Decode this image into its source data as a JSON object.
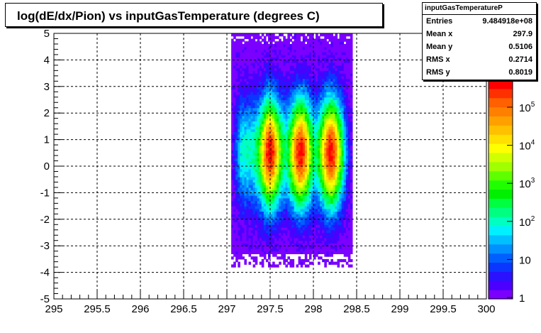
{
  "title": "log(dE/dx/Pion) vs inputGasTemperature (degrees C)",
  "stats": {
    "name": "inputGasTemperatureP",
    "rows": [
      {
        "label": "Entries",
        "value": "9.484918e+08"
      },
      {
        "label": "Mean x",
        "value": "297.9"
      },
      {
        "label": "Mean y",
        "value": "0.5106"
      },
      {
        "label": "RMS x",
        "value": "0.2714"
      },
      {
        "label": "RMS y",
        "value": "0.8019"
      }
    ]
  },
  "chart_data": {
    "type": "heatmap",
    "title": "log(dE/dx/Pion) vs inputGasTemperature (degrees C)",
    "xlim": [
      295,
      300
    ],
    "ylim": [
      -5,
      5
    ],
    "xticks": [
      "295",
      "295.5",
      "296",
      "296.5",
      "297",
      "297.5",
      "298",
      "298.5",
      "299",
      "299.5",
      "300"
    ],
    "yticks": [
      "-5",
      "-4",
      "-3",
      "-2",
      "-1",
      "0",
      "1",
      "2",
      "3",
      "4",
      "5"
    ],
    "grid": true,
    "colorbar": {
      "scale": "log",
      "labels": [
        "1",
        "10",
        "10^2",
        "10^3",
        "10^4",
        "10^5"
      ],
      "top_exponent": "6",
      "colors": [
        "#7b00ff",
        "#4b00ff",
        "#2b12ff",
        "#0a36ff",
        "#0060ff",
        "#0090ff",
        "#00c0ff",
        "#00f0ff",
        "#00ffc0",
        "#00ff80",
        "#00ff40",
        "#00f000",
        "#20ff00",
        "#60ff00",
        "#a0ff00",
        "#d0ff00",
        "#ffff00",
        "#ffe000",
        "#ffc000",
        "#ffa000",
        "#ff8000",
        "#ff6000",
        "#ff3000",
        "#ff0000"
      ]
    },
    "x_range_filled": [
      297.05,
      298.45
    ],
    "y_range_filled": [
      -3.8,
      5.0
    ],
    "peak_x": [
      297.5,
      297.85,
      298.2
    ],
    "peak_y": 0.5
  }
}
